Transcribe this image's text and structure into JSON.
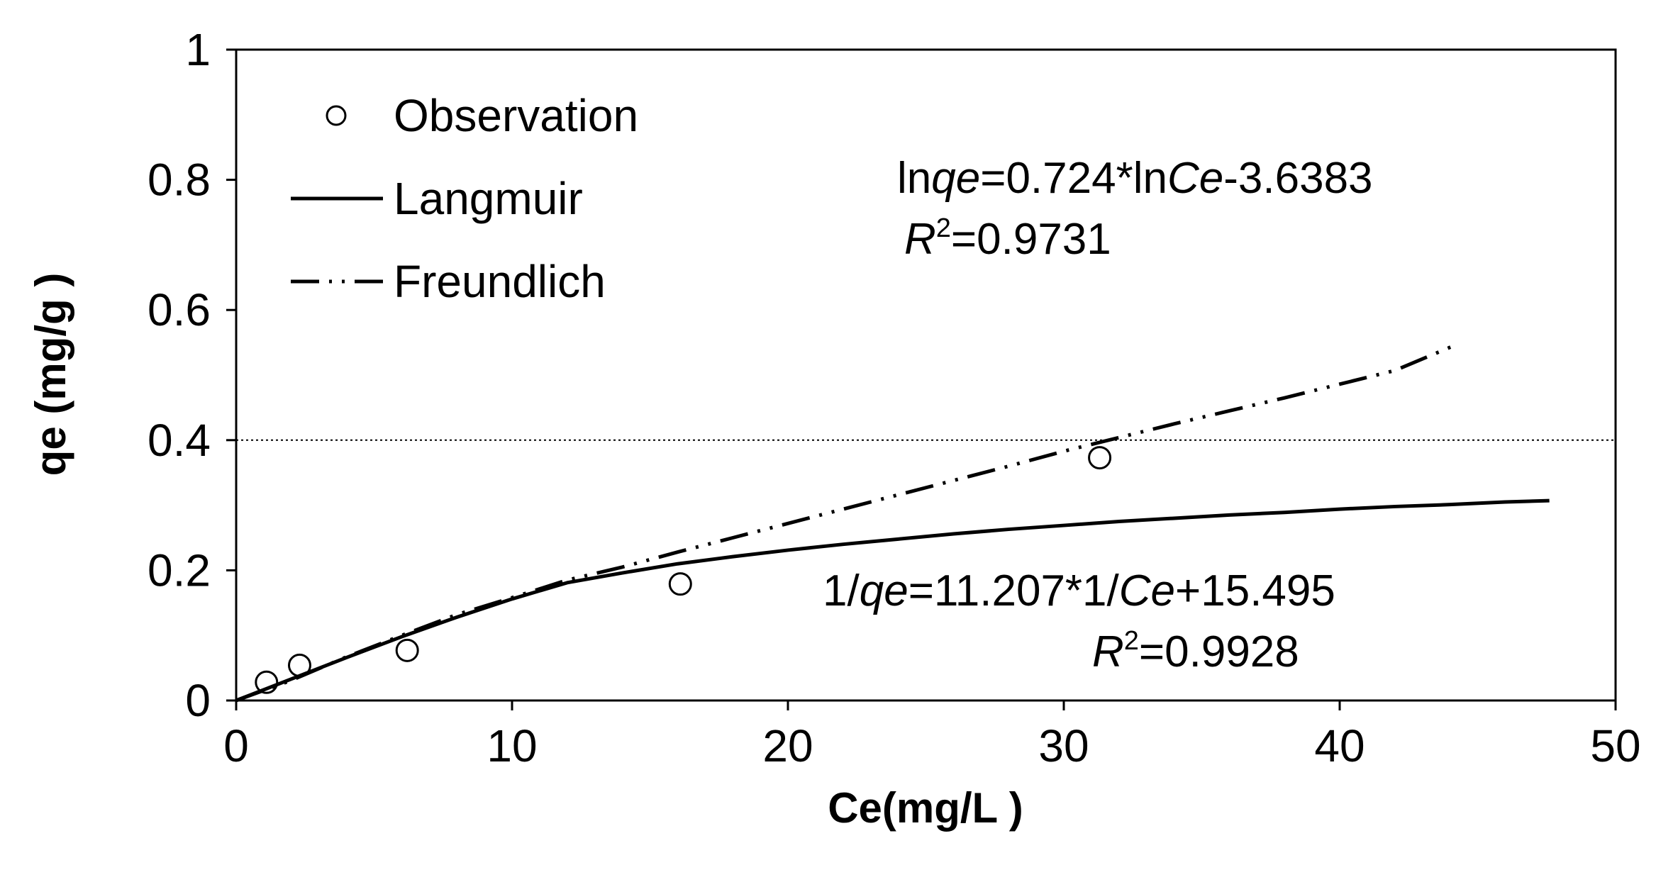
{
  "chart_data": {
    "type": "scatter",
    "xlabel": "Ce(mg/L )",
    "ylabel": "qe (mg/g )",
    "xlim": [
      0,
      50
    ],
    "ylim": [
      0,
      1
    ],
    "x_ticks": [
      0,
      10,
      20,
      30,
      40,
      50
    ],
    "y_ticks": [
      0,
      0.2,
      0.4,
      0.6,
      0.8,
      1
    ],
    "x_tick_labels": [
      "0",
      "10",
      "20",
      "30",
      "40",
      "50"
    ],
    "y_tick_labels": [
      "0",
      "0.2",
      "0.4",
      "0.6",
      "0.8",
      "1"
    ],
    "grid": false,
    "reference_line_y": 0.4,
    "legend_position": "top-left",
    "series": [
      {
        "name": "Observation",
        "style": "open-circle",
        "x": [
          1.1,
          2.3,
          6.2,
          16.1,
          31.3
        ],
        "y": [
          0.028,
          0.054,
          0.077,
          0.179,
          0.373
        ]
      },
      {
        "name": "Langmuir",
        "style": "solid",
        "x": [
          0,
          2,
          4,
          6,
          8,
          10,
          12,
          14,
          16,
          18,
          20,
          22,
          24,
          26,
          28,
          30,
          32,
          34,
          36,
          38,
          40,
          42,
          44,
          46,
          47.6
        ],
        "y": [
          0,
          0.033,
          0.066,
          0.098,
          0.128,
          0.156,
          0.181,
          0.196,
          0.21,
          0.221,
          0.231,
          0.24,
          0.248,
          0.256,
          0.263,
          0.269,
          0.275,
          0.28,
          0.285,
          0.289,
          0.294,
          0.298,
          0.301,
          0.305,
          0.307
        ]
      },
      {
        "name": "Freundlich",
        "style": "dash-dot-dot",
        "x": [
          0,
          2,
          4,
          6,
          8,
          10,
          12,
          14,
          16,
          18,
          20,
          22,
          24,
          26,
          28,
          30,
          32,
          34,
          36,
          38,
          40,
          42,
          44.3
        ],
        "y": [
          0,
          0.031,
          0.067,
          0.1,
          0.132,
          0.158,
          0.185,
          0.205,
          0.228,
          0.25,
          0.272,
          0.294,
          0.316,
          0.338,
          0.36,
          0.383,
          0.404,
          0.425,
          0.445,
          0.465,
          0.486,
          0.507,
          0.548
        ]
      }
    ],
    "annotations": {
      "freundlich_eq": {
        "t1": "ln",
        "t2": "qe",
        "t3": "=0.724*ln",
        "t4": "Ce",
        "t5": "-3.6383"
      },
      "freundlich_r2": {
        "r": "R",
        "sup": "2",
        "val": "=0.9731"
      },
      "langmuir_eq": {
        "t1": "1/",
        "t2": "qe",
        "t3": "=11.207*1/",
        "t4": "Ce",
        "t5": "+15.495"
      },
      "langmuir_r2": {
        "r": "R",
        "sup": "2",
        "val": "=0.9928"
      }
    }
  }
}
